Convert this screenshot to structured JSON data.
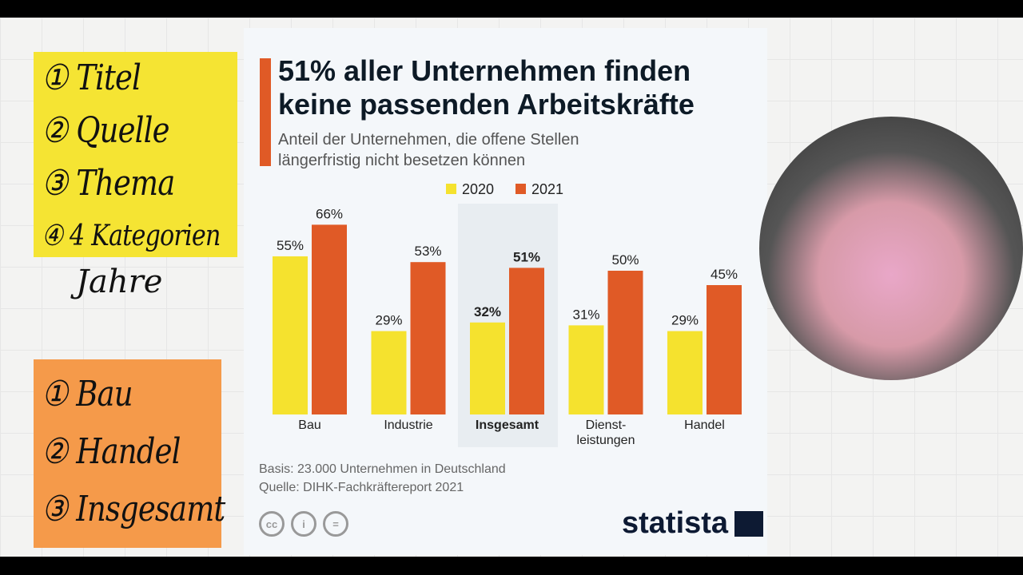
{
  "notes": {
    "yellow": [
      "① Titel",
      "② Quelle",
      "③ Thema",
      "④ 4 Kategorien"
    ],
    "extra": "Jahre",
    "orange": [
      "① Bau",
      "② Handel",
      "③ Insgesamt"
    ]
  },
  "chart_title": "51% aller Unternehmen finden keine passenden Arbeitskräfte",
  "chart_subtitle": "Anteil der Unternehmen, die offene Stellen längerfristig nicht besetzen können",
  "footer": {
    "basis": "Basis: 23.000 Unternehmen in Deutschland",
    "source": "Quelle: DIHK-Fachkräftereport 2021"
  },
  "license_icons": [
    "cc-icon",
    "attribution-icon",
    "no-derivatives-icon"
  ],
  "license_labels": {
    "cc": "cc",
    "by": "i",
    "nd": "="
  },
  "brand": "statista",
  "colors": {
    "2020": "#f5e22e",
    "2021": "#e05a26",
    "accent": "#e05a26"
  },
  "chart_data": {
    "type": "bar",
    "title": "51% aller Unternehmen finden keine passenden Arbeitskräfte",
    "subtitle": "Anteil der Unternehmen, die offene Stellen längerfristig nicht besetzen können",
    "categories": [
      "Bau",
      "Industrie",
      "Insgesamt",
      "Dienst-\nleistungen",
      "Handel"
    ],
    "highlight": "Insgesamt",
    "series": [
      {
        "name": "2020",
        "values": [
          55,
          29,
          32,
          31,
          29
        ]
      },
      {
        "name": "2021",
        "values": [
          66,
          53,
          51,
          50,
          45
        ]
      }
    ],
    "unit": "%",
    "ylim": [
      0,
      70
    ],
    "grid": false,
    "legend": "top-center"
  }
}
